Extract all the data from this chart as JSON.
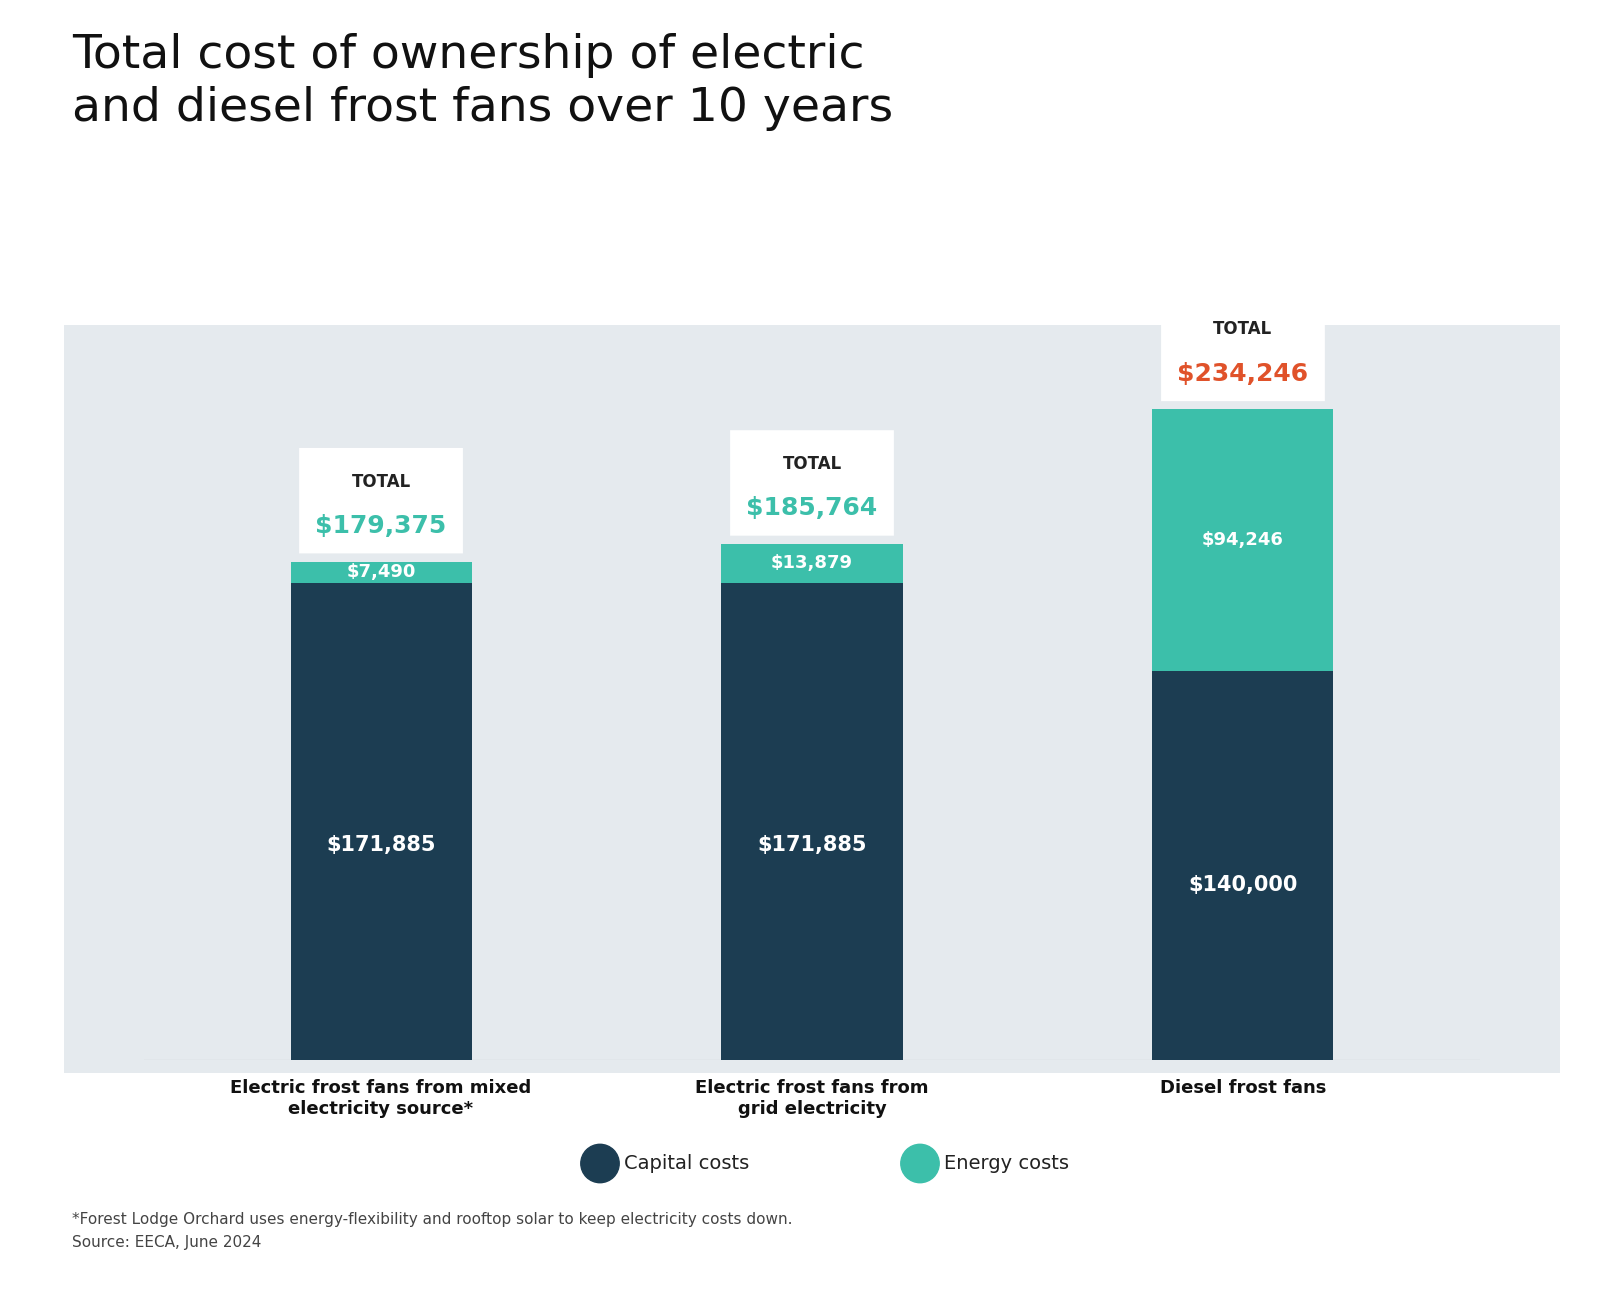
{
  "title": "Total cost of ownership of electric\nand diesel frost fans over 10 years",
  "categories": [
    "Electric frost fans from mixed\nelectricity source*",
    "Electric frost fans from\ngrid electricity",
    "Diesel frost fans"
  ],
  "capital_costs": [
    171885,
    171885,
    140000
  ],
  "energy_costs": [
    7490,
    13879,
    94246
  ],
  "totals": [
    179375,
    185764,
    234246
  ],
  "total_labels": [
    "$179,375",
    "$185,764",
    "$234,246"
  ],
  "capital_labels": [
    "$171,885",
    "$171,885",
    "$140,000"
  ],
  "energy_labels": [
    "$7,490",
    "$13,879",
    "$94,246"
  ],
  "capital_color": "#1c3d52",
  "energy_color": "#3cbfaa",
  "background_color": "#e5eaee",
  "fig_background": "#ffffff",
  "total_color_electric": "#3cbfaa",
  "total_color_diesel": "#e0522a",
  "footnote_line1": "*Forest Lodge Orchard uses energy-flexibility and rooftop solar to keep electricity costs down.",
  "footnote_line2": "Source: EECA, June 2024",
  "legend_capital": "Capital costs",
  "legend_energy": "Energy costs",
  "ylim_max": 260000,
  "bar_width": 0.42
}
